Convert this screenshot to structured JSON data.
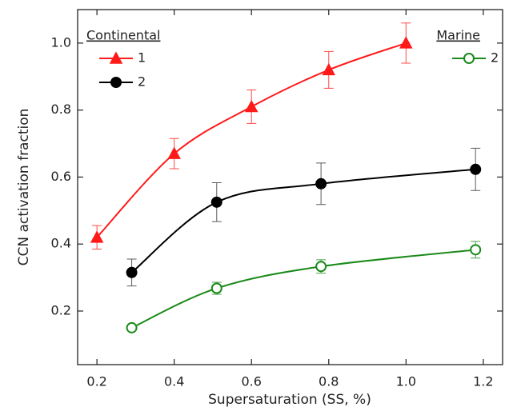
{
  "chart_data": {
    "type": "scatter",
    "x_label": "Supersaturation (SS, %)",
    "y_label": "CCN activation fraction",
    "xlim": [
      0.15,
      1.25
    ],
    "ylim": [
      0.04,
      1.1
    ],
    "xticks": [
      0.2,
      0.4,
      0.6,
      0.8,
      {
        "value": 1,
        "label": "1.0"
      },
      1.2
    ],
    "yticks": [
      0.2,
      0.4,
      0.6,
      0.8,
      {
        "value": 1,
        "label": "1.0"
      }
    ],
    "legend_groups": [
      "Continental",
      "Marine"
    ],
    "series": [
      {
        "name": "1",
        "group": 0,
        "color": "#ff1a1a",
        "marker": "triangle",
        "filled": true,
        "x": [
          0.2,
          0.4,
          0.6,
          0.8,
          1.0
        ],
        "values": [
          0.42,
          0.67,
          0.81,
          0.92,
          1.0
        ],
        "errors": [
          0.035,
          0.045,
          0.05,
          0.055,
          0.06
        ]
      },
      {
        "name": "2",
        "group": 0,
        "color": "#000000",
        "marker": "circle",
        "filled": true,
        "x": [
          0.29,
          0.51,
          0.78,
          1.18
        ],
        "values": [
          0.315,
          0.525,
          0.58,
          0.623
        ],
        "errors": [
          0.04,
          0.058,
          0.062,
          0.063
        ]
      },
      {
        "name": "2",
        "group": 1,
        "color": "#1a8a1a",
        "marker": "circle",
        "filled": false,
        "x": [
          0.29,
          0.51,
          0.78,
          1.18
        ],
        "values": [
          0.15,
          0.268,
          0.333,
          0.383
        ],
        "errors": [
          0.007,
          0.018,
          0.02,
          0.025
        ]
      }
    ]
  }
}
